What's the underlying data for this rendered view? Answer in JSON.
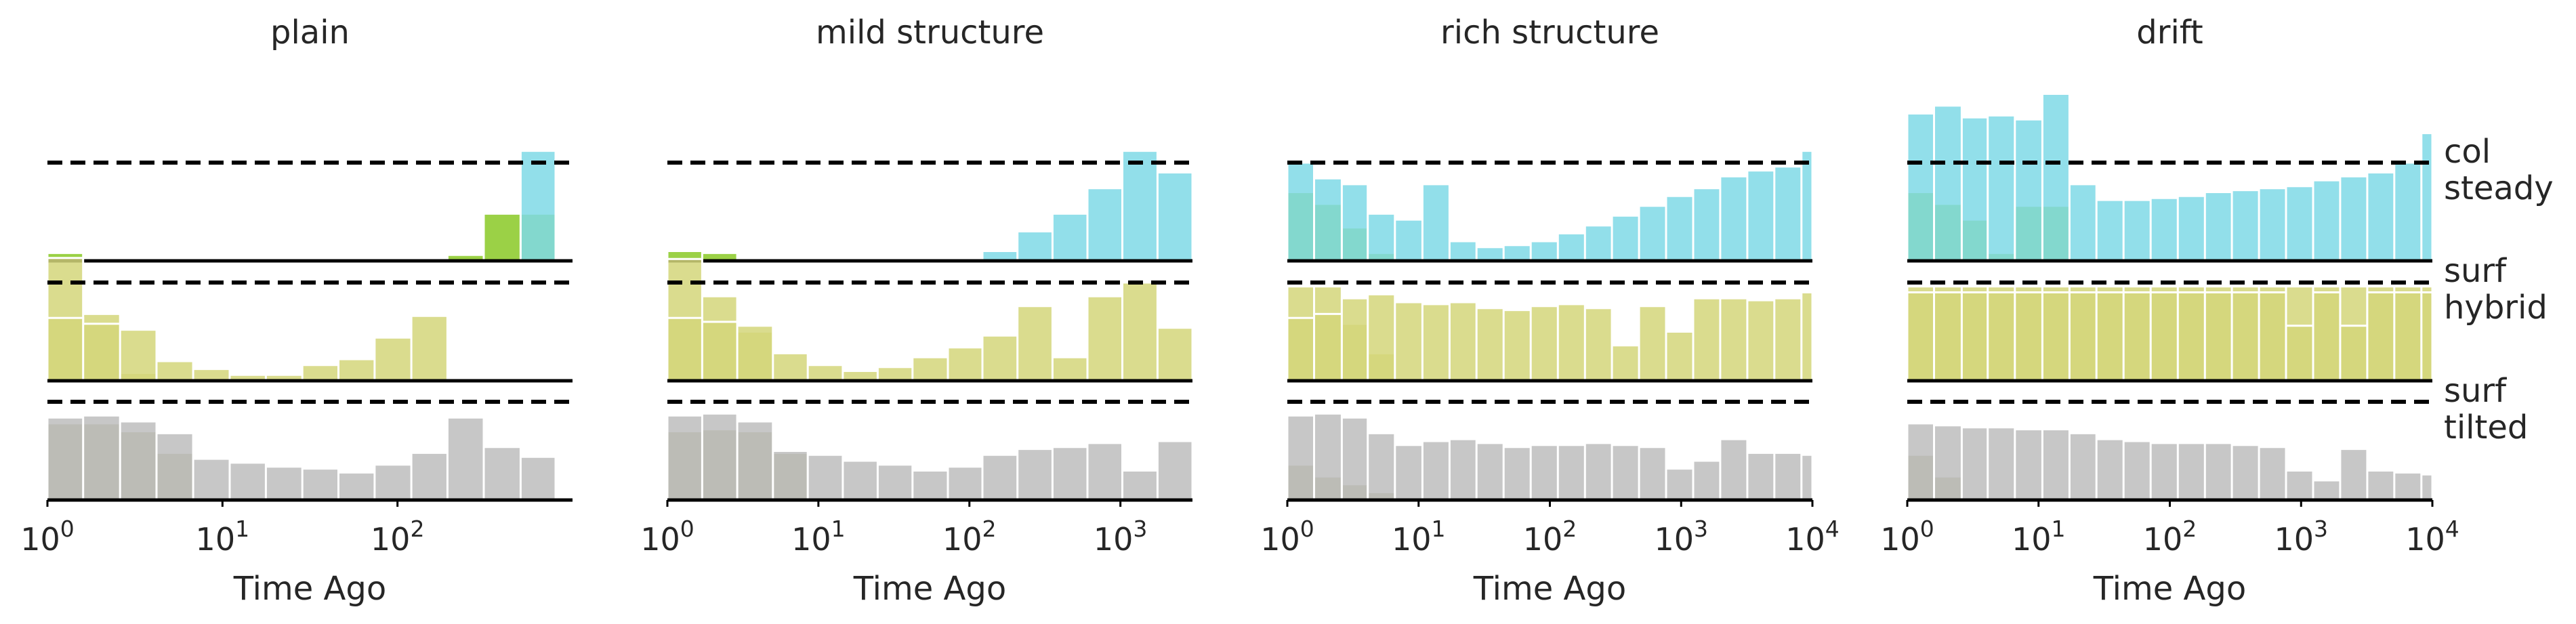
{
  "chart_data": [
    {
      "type": "area",
      "title": "plain",
      "xlabel": "Time Ago",
      "xscale": "log",
      "xlim": [
        1,
        1000
      ],
      "xticks": [
        {
          "value": 1,
          "mantissa": "10",
          "exp": "0"
        },
        {
          "value": 10,
          "mantissa": "10",
          "exp": "1"
        },
        {
          "value": 100,
          "mantissa": "10",
          "exp": "2"
        }
      ],
      "bin_edges": [
        1,
        1.6,
        2.6,
        4.2,
        6.8,
        11,
        17.7,
        28.6,
        46,
        74,
        120,
        193,
        311,
        505,
        800
      ],
      "rows": [
        {
          "name": "col steady",
          "series": [
            {
              "color": "#8ac926",
              "values": [
                0.08,
                0.02,
                0,
                0,
                0,
                0,
                0,
                0,
                0,
                0,
                0,
                0.06,
                0.48,
                0.48
              ]
            },
            {
              "color": "#7fd9e6",
              "values": [
                0,
                0,
                0,
                0,
                0,
                0,
                0,
                0,
                0,
                0,
                0,
                0,
                0,
                1.12
              ]
            }
          ]
        },
        {
          "name": "surf hybrid",
          "series": [
            {
              "color": "#d4d67a",
              "values": [
                1.25,
                0.68,
                0.08,
                0,
                0,
                0,
                0,
                0,
                0,
                0,
                0,
                0,
                0,
                0
              ]
            },
            {
              "color": "#d4d67a",
              "values": [
                0.64,
                0.58,
                0.52,
                0.2,
                0.12,
                0.06,
                0.06,
                0.16,
                0.22,
                0.44,
                0.66,
                0,
                0,
                0
              ]
            }
          ]
        },
        {
          "name": "surf tilted",
          "series": [
            {
              "color": "#a8a878",
              "values": [
                0.78,
                0.78,
                0.7,
                0.48,
                0,
                0,
                0,
                0,
                0,
                0,
                0,
                0,
                0,
                0
              ]
            },
            {
              "color": "#bdbdbd",
              "values": [
                0.84,
                0.86,
                0.8,
                0.68,
                0.42,
                0.38,
                0.34,
                0.32,
                0.28,
                0.36,
                0.48,
                0.84,
                0.54,
                0.44
              ]
            }
          ]
        }
      ]
    },
    {
      "type": "area",
      "title": "mild structure",
      "xlabel": "Time Ago",
      "xscale": "log",
      "xlim": [
        1,
        3000
      ],
      "xticks": [
        {
          "value": 1,
          "mantissa": "10",
          "exp": "0"
        },
        {
          "value": 10,
          "mantissa": "10",
          "exp": "1"
        },
        {
          "value": 100,
          "mantissa": "10",
          "exp": "2"
        },
        {
          "value": 1000,
          "mantissa": "10",
          "exp": "3"
        }
      ],
      "bin_edges": [
        1,
        1.7,
        2.9,
        5,
        8.5,
        14.5,
        24.7,
        42,
        72,
        122,
        208,
        355,
        605,
        1030,
        1760,
        3000
      ],
      "rows": [
        {
          "name": "col steady",
          "series": [
            {
              "color": "#8ac926",
              "values": [
                0.1,
                0.08,
                0,
                0,
                0,
                0,
                0,
                0,
                0,
                0,
                0,
                0,
                0,
                0,
                0
              ]
            },
            {
              "color": "#7fd9e6",
              "values": [
                0,
                0,
                0,
                0,
                0,
                0,
                0,
                0,
                0,
                0.1,
                0.3,
                0.48,
                0.74,
                1.12,
                0.9
              ]
            }
          ]
        },
        {
          "name": "surf hybrid",
          "series": [
            {
              "color": "#d4d67a",
              "values": [
                1.24,
                0.86,
                0.5,
                0,
                0,
                0,
                0,
                0,
                0,
                0,
                0,
                0,
                0,
                0,
                0
              ]
            },
            {
              "color": "#d4d67a",
              "values": [
                0.64,
                0.6,
                0.56,
                0.28,
                0.16,
                0.1,
                0.14,
                0.24,
                0.34,
                0.46,
                0.76,
                0.24,
                0.86,
                1.0,
                0.54
              ]
            }
          ]
        },
        {
          "name": "surf tilted",
          "series": [
            {
              "color": "#a8a878",
              "values": [
                0.7,
                0.72,
                0.7,
                0.48,
                0,
                0,
                0,
                0,
                0,
                0,
                0,
                0,
                0,
                0,
                0
              ]
            },
            {
              "color": "#bdbdbd",
              "values": [
                0.86,
                0.88,
                0.8,
                0.5,
                0.46,
                0.4,
                0.36,
                0.3,
                0.34,
                0.46,
                0.52,
                0.54,
                0.58,
                0.3,
                0.6
              ]
            }
          ]
        }
      ]
    },
    {
      "type": "area",
      "title": "rich structure",
      "xlabel": "Time Ago",
      "xscale": "log",
      "xlim": [
        1,
        10000
      ],
      "xticks": [
        {
          "value": 1,
          "mantissa": "10",
          "exp": "0"
        },
        {
          "value": 10,
          "mantissa": "10",
          "exp": "1"
        },
        {
          "value": 100,
          "mantissa": "10",
          "exp": "2"
        },
        {
          "value": 1000,
          "mantissa": "10",
          "exp": "3"
        },
        {
          "value": 10000,
          "mantissa": "10",
          "exp": "4"
        }
      ],
      "bin_edges": [
        1,
        1.6,
        2.6,
        4.1,
        6.6,
        10.7,
        17.2,
        27.6,
        44.4,
        71.4,
        115,
        185,
        297,
        478,
        768,
        1235,
        1985,
        3190,
        5130,
        8250,
        10000
      ],
      "rows": [
        {
          "name": "col steady",
          "series": [
            {
              "color": "#8ac926",
              "values": [
                0.7,
                0.58,
                0.34,
                0.08,
                0,
                0,
                0,
                0,
                0,
                0,
                0,
                0,
                0,
                0,
                0,
                0,
                0,
                0,
                0,
                0
              ]
            },
            {
              "color": "#7fd9e6",
              "values": [
                1.0,
                0.84,
                0.78,
                0.48,
                0.42,
                0.78,
                0.2,
                0.14,
                0.16,
                0.2,
                0.28,
                0.36,
                0.46,
                0.56,
                0.66,
                0.74,
                0.86,
                0.92,
                0.96,
                1.12
              ]
            }
          ]
        },
        {
          "name": "surf hybrid",
          "series": [
            {
              "color": "#d4d67a",
              "values": [
                0.96,
                0.96,
                0.58,
                0.28,
                0,
                0,
                0,
                0,
                0,
                0,
                0,
                0,
                0,
                0,
                0,
                0,
                0,
                0,
                0,
                0
              ]
            },
            {
              "color": "#d4d67a",
              "values": [
                0.64,
                0.68,
                0.84,
                0.88,
                0.8,
                0.78,
                0.8,
                0.74,
                0.72,
                0.76,
                0.78,
                0.74,
                0.36,
                0.76,
                0.5,
                0.84,
                0.84,
                0.82,
                0.84,
                0.9
              ]
            }
          ]
        },
        {
          "name": "surf tilted",
          "series": [
            {
              "color": "#a8a878",
              "values": [
                0.36,
                0.24,
                0.16,
                0.08,
                0,
                0,
                0,
                0,
                0,
                0,
                0,
                0,
                0,
                0,
                0,
                0,
                0,
                0,
                0,
                0
              ]
            },
            {
              "color": "#bdbdbd",
              "values": [
                0.86,
                0.88,
                0.84,
                0.68,
                0.56,
                0.6,
                0.62,
                0.58,
                0.54,
                0.56,
                0.56,
                0.58,
                0.56,
                0.54,
                0.32,
                0.4,
                0.62,
                0.48,
                0.48,
                0.46
              ]
            }
          ]
        }
      ]
    },
    {
      "type": "area",
      "title": "drift",
      "xlabel": "Time Ago",
      "xscale": "log",
      "xlim": [
        1,
        10000
      ],
      "xticks": [
        {
          "value": 1,
          "mantissa": "10",
          "exp": "0"
        },
        {
          "value": 10,
          "mantissa": "10",
          "exp": "1"
        },
        {
          "value": 100,
          "mantissa": "10",
          "exp": "2"
        },
        {
          "value": 1000,
          "mantissa": "10",
          "exp": "3"
        },
        {
          "value": 10000,
          "mantissa": "10",
          "exp": "4"
        }
      ],
      "bin_edges": [
        1,
        1.6,
        2.6,
        4.1,
        6.6,
        10.7,
        17.2,
        27.6,
        44.4,
        71.4,
        115,
        185,
        297,
        478,
        768,
        1235,
        1985,
        3190,
        5130,
        8250,
        10000
      ],
      "rows": [
        {
          "name": "col steady",
          "series": [
            {
              "color": "#8ac926",
              "values": [
                0.7,
                0.58,
                0.42,
                0.08,
                0.56,
                0.56,
                0,
                0,
                0,
                0,
                0,
                0,
                0,
                0,
                0,
                0,
                0,
                0,
                0,
                0
              ]
            },
            {
              "color": "#7fd9e6",
              "values": [
                1.5,
                1.58,
                1.46,
                1.48,
                1.44,
                1.7,
                0.78,
                0.62,
                0.62,
                0.64,
                0.66,
                0.7,
                0.72,
                0.74,
                0.76,
                0.82,
                0.86,
                0.9,
                1.0,
                1.3
              ]
            }
          ]
        },
        {
          "name": "surf hybrid",
          "series": [
            {
              "color": "#d4d67a",
              "values": [
                0.96,
                0.96,
                0.96,
                0.96,
                0.96,
                0.96,
                0.96,
                0.96,
                0.96,
                0.96,
                0.96,
                0.96,
                0.96,
                0.96,
                0.96,
                0.96,
                0.96,
                0.96,
                0.96,
                0.96
              ]
            },
            {
              "color": "#d4d67a",
              "values": [
                0.9,
                0.9,
                0.9,
                0.9,
                0.9,
                0.9,
                0.9,
                0.9,
                0.9,
                0.9,
                0.9,
                0.9,
                0.9,
                0.9,
                0.56,
                0.9,
                0.56,
                0.9,
                0.9,
                0.9
              ]
            }
          ]
        },
        {
          "name": "surf tilted",
          "series": [
            {
              "color": "#a8a878",
              "values": [
                0.46,
                0.24,
                0,
                0,
                0,
                0,
                0,
                0,
                0,
                0,
                0,
                0,
                0,
                0,
                0,
                0,
                0,
                0,
                0,
                0
              ]
            },
            {
              "color": "#bdbdbd",
              "values": [
                0.78,
                0.76,
                0.74,
                0.74,
                0.72,
                0.72,
                0.68,
                0.62,
                0.6,
                0.58,
                0.58,
                0.58,
                0.56,
                0.54,
                0.3,
                0.2,
                0.52,
                0.3,
                0.28,
                0.26
              ]
            }
          ]
        }
      ]
    }
  ],
  "row_labels": [
    {
      "line1": "col",
      "line2": "steady"
    },
    {
      "line1": "surf",
      "line2": "hybrid"
    },
    {
      "line1": "surf",
      "line2": "tilted"
    }
  ],
  "reference_level": 1.0,
  "colors": {
    "cyan": "#7fd9e6",
    "olive": "#d4d67a",
    "gray": "#bdbdbd",
    "green_overlap": "#8ac926",
    "dark_overlap": "#a8a878"
  }
}
